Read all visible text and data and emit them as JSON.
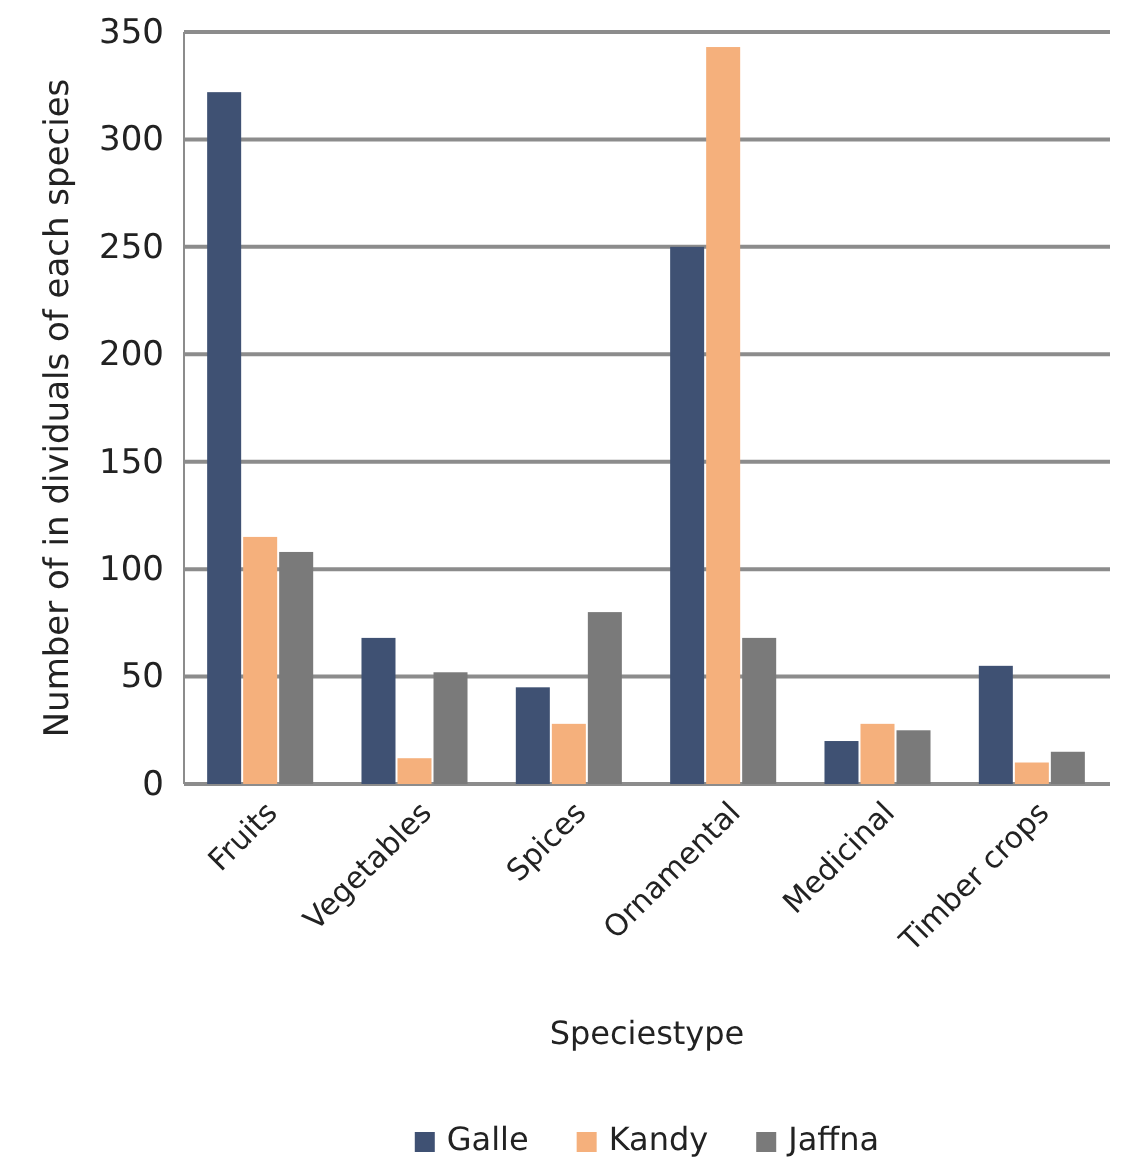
{
  "chart_data": {
    "type": "bar",
    "xlabel": "Speciestype",
    "ylabel": "Number of in dividuals of each species",
    "categories": [
      "Fruits",
      "Vegetables",
      "Spices",
      "Ornamental",
      "Medicinal",
      "Timber crops"
    ],
    "series": [
      {
        "name": "Galle",
        "color": "#3f5173",
        "values": [
          322,
          68,
          45,
          250,
          20,
          55
        ]
      },
      {
        "name": "Kandy",
        "color": "#f5b07c",
        "values": [
          115,
          12,
          28,
          343,
          28,
          10
        ]
      },
      {
        "name": "Jaffna",
        "color": "#7a7a7a",
        "values": [
          108,
          52,
          80,
          68,
          25,
          15
        ]
      }
    ],
    "ylim": [
      0,
      350
    ],
    "yticks": [
      0,
      50,
      100,
      150,
      200,
      250,
      300,
      350
    ],
    "grid": "y",
    "legend": "bottom"
  }
}
